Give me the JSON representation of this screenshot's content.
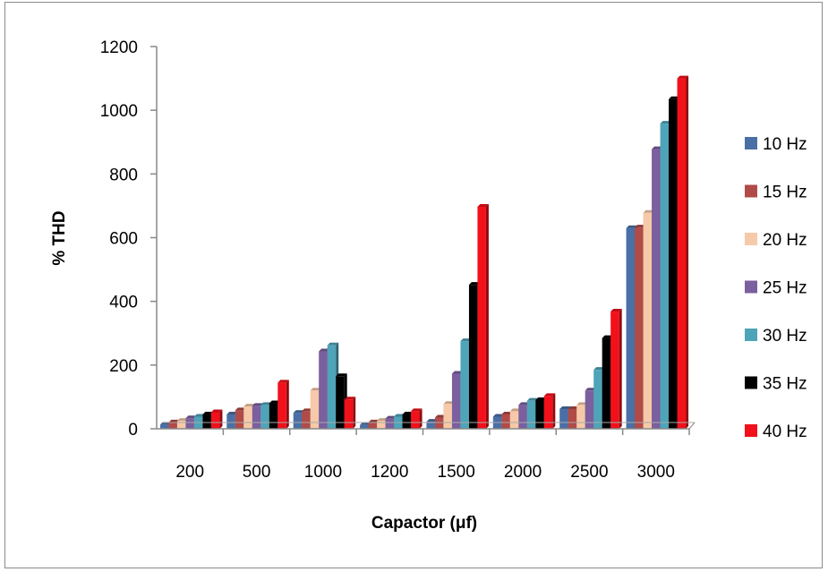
{
  "chart_data": {
    "type": "bar",
    "title": "",
    "xlabel": "Capactor (μf)",
    "ylabel": "% THD",
    "ylim": [
      0,
      1200
    ],
    "yticks": [
      0,
      200,
      400,
      600,
      800,
      1000,
      1200
    ],
    "grid": false,
    "legend_position": "right",
    "categories": [
      "200",
      "500",
      "1000",
      "1200",
      "1500",
      "2000",
      "2500",
      "3000"
    ],
    "series": [
      {
        "name": "10 Hz",
        "color": "#4a6fa6",
        "values": [
          13,
          45,
          50,
          12,
          22,
          38,
          62,
          630
        ]
      },
      {
        "name": "15 Hz",
        "color": "#b04b48",
        "values": [
          20,
          58,
          55,
          20,
          35,
          45,
          62,
          632
        ]
      },
      {
        "name": "20 Hz",
        "color": "#f6c9a8",
        "values": [
          25,
          70,
          120,
          25,
          78,
          55,
          75,
          678
        ]
      },
      {
        "name": "25 Hz",
        "color": "#7b5f9e",
        "values": [
          33,
          72,
          243,
          32,
          173,
          75,
          120,
          878
        ]
      },
      {
        "name": "30 Hz",
        "color": "#4ea4b8",
        "values": [
          38,
          75,
          262,
          38,
          275,
          88,
          185,
          958
        ]
      },
      {
        "name": "35 Hz",
        "color": "#000000",
        "values": [
          45,
          80,
          165,
          45,
          452,
          90,
          285,
          1035
        ]
      },
      {
        "name": "40 Hz",
        "color": "#f2101a",
        "values": [
          52,
          145,
          92,
          55,
          697,
          103,
          368,
          1100
        ]
      }
    ]
  }
}
